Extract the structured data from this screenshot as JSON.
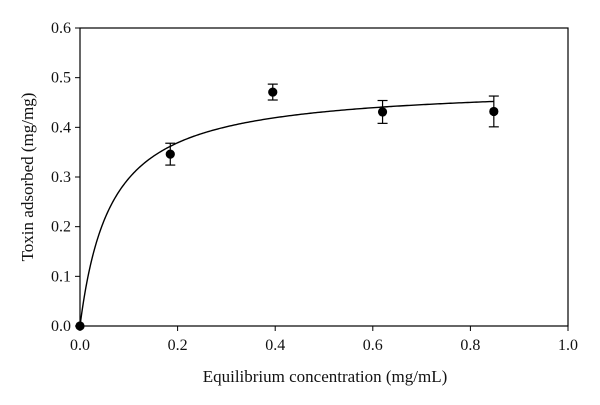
{
  "chart_data": {
    "type": "scatter",
    "xlabel": "Equilibrium concentration (mg/mL)",
    "ylabel": "Toxin adsorbed (mg/mg)",
    "xlim": [
      0.0,
      1.0
    ],
    "ylim": [
      0.0,
      0.6
    ],
    "x_ticks": [
      "0.0",
      "0.2",
      "0.4",
      "0.6",
      "0.8",
      "1.0"
    ],
    "y_ticks": [
      "0.0",
      "0.1",
      "0.2",
      "0.3",
      "0.4",
      "0.5",
      "0.6"
    ],
    "grid": false,
    "legend": "none",
    "series": [
      {
        "points": [
          {
            "x": 0.0,
            "y": 0.0,
            "err": 0.0
          },
          {
            "x": 0.185,
            "y": 0.346,
            "err": 0.022
          },
          {
            "x": 0.395,
            "y": 0.471,
            "err": 0.016
          },
          {
            "x": 0.62,
            "y": 0.431,
            "err": 0.023
          },
          {
            "x": 0.848,
            "y": 0.432,
            "err": 0.031
          }
        ]
      }
    ],
    "fit_curve": {
      "model": "Langmuir",
      "qmax": 0.486,
      "K": 0.0635
    },
    "colors": {
      "marker": "#000000",
      "line": "#000000",
      "frame": "#000000"
    }
  }
}
